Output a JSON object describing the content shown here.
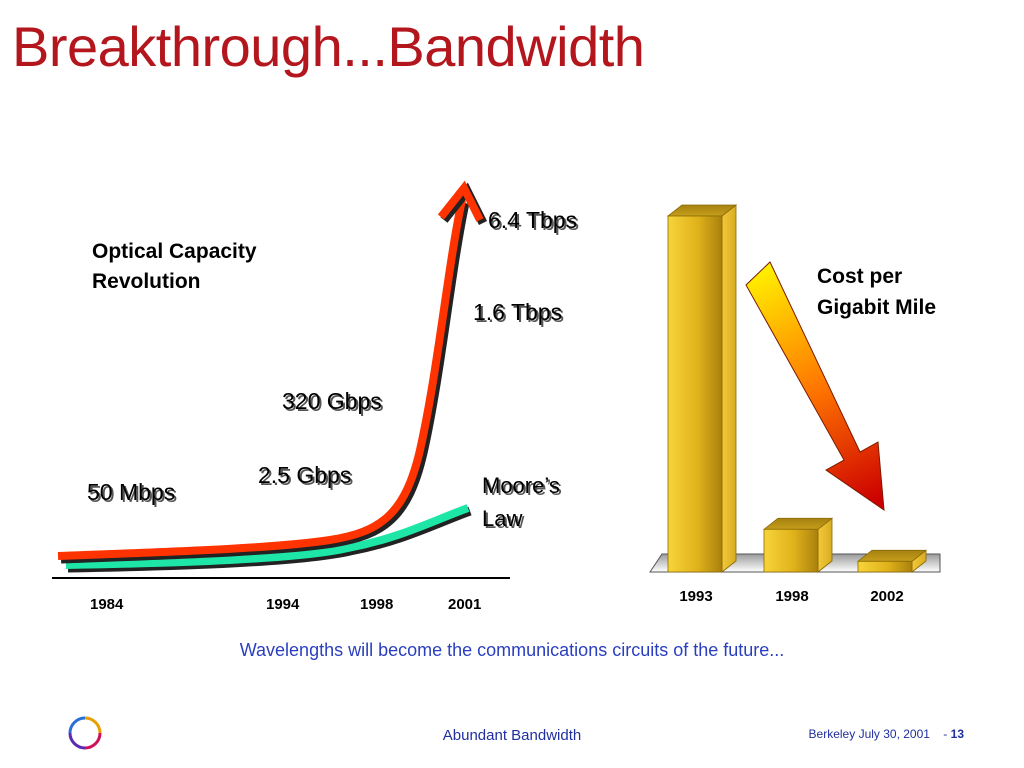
{
  "slide": {
    "title": "Breakthrough...Bandwidth",
    "subtitle": "Wavelengths will become the communications circuits of the future...",
    "footer_center": "Abundant Bandwidth",
    "footer_date": "Berkeley July 30, 2001",
    "footer_separator": "-",
    "page_number": "13"
  },
  "chart_data": [
    {
      "type": "line",
      "title": "Optical Capacity Revolution",
      "title_lines": [
        "Optical Capacity",
        "Revolution"
      ],
      "x_ticks": [
        "1984",
        "1994",
        "1998",
        "2001"
      ],
      "series": [
        {
          "name": "",
          "color": "#ff3300",
          "x": [
            1984,
            1994,
            1998,
            2001
          ],
          "labels": [
            "50 Mbps",
            "2.5 Gbps",
            "320 Gbps",
            "1.6 Tbps",
            "6.4 Tbps"
          ]
        },
        {
          "name": "Moore’s Law",
          "name_lines": [
            "Moore’s",
            "Law"
          ],
          "color": "#1ee6a6",
          "x": [
            1984,
            2001
          ]
        }
      ]
    },
    {
      "type": "bar",
      "title": "Cost per Gigabit Mile",
      "title_lines": [
        "Cost per",
        "Gigabit Mile"
      ],
      "categories": [
        "1993",
        "1998",
        "2002"
      ],
      "values": [
        100,
        12,
        3
      ],
      "ylim": [
        0,
        100
      ],
      "color": "#f0c020",
      "arrow_colors": [
        "#ffee00",
        "#ff7700",
        "#cc0000"
      ]
    }
  ]
}
